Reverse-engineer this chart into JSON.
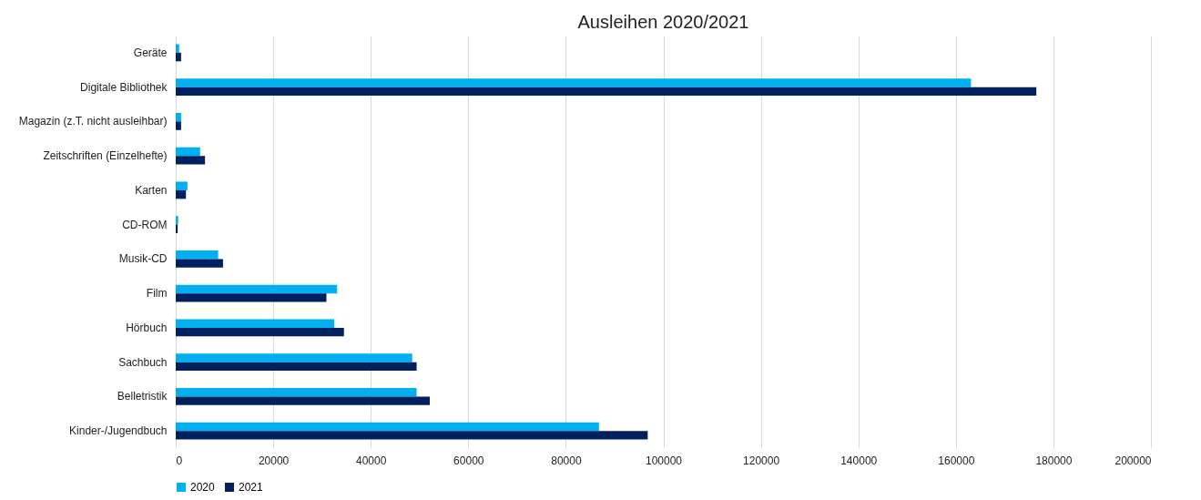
{
  "chart_data": {
    "type": "bar",
    "orientation": "horizontal",
    "title": "Ausleihen 2020/2021",
    "categories": [
      "Geräte",
      "Digitale Bibliothek",
      "Magazin (z.T. nicht ausleihbar)",
      "Zeitschriften (Einzelhefte)",
      "Karten",
      "CD-ROM",
      "Musik-CD",
      "Film",
      "Hörbuch",
      "Sachbuch",
      "Belletristik",
      "Kinder-/Jugendbuch"
    ],
    "series": [
      {
        "name": "2020",
        "color": "#00b0f0",
        "values": [
          700,
          163100,
          1100,
          5000,
          2400,
          500,
          8700,
          33100,
          32500,
          48500,
          49400,
          86800
        ]
      },
      {
        "name": "2021",
        "color": "#002060",
        "values": [
          1100,
          176500,
          1100,
          6000,
          2100,
          400,
          9700,
          30900,
          34500,
          49400,
          52100,
          96800
        ]
      }
    ],
    "xlim": [
      0,
      200000
    ],
    "xticks": [
      0,
      20000,
      40000,
      60000,
      80000,
      100000,
      120000,
      140000,
      160000,
      180000,
      200000
    ],
    "grid": "x",
    "legend": "bottom"
  }
}
